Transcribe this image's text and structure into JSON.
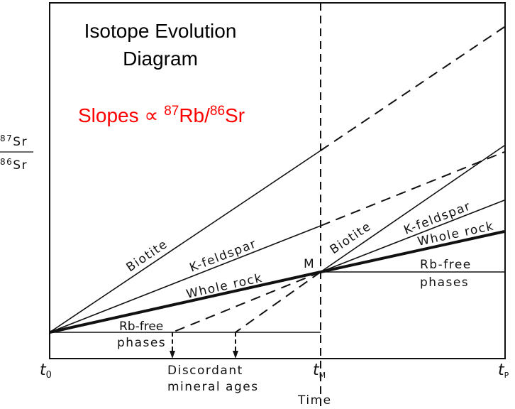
{
  "title_line1": "Isotope Evolution",
  "title_line2": "Diagram",
  "slopes": {
    "prefix": "Slopes ∝ ",
    "sup1": "87",
    "mid": "Rb/",
    "sup2": "86",
    "suffix": "Sr"
  },
  "y_axis": {
    "num_sup": "87",
    "num": "Sr",
    "den_sup": "86",
    "den": "Sr"
  },
  "x_axis": {
    "label": "Time",
    "t0": "t",
    "t0_sub": "0",
    "tM": "t",
    "tM_sub": "M",
    "tP": "t",
    "tP_sub": "P"
  },
  "point_label": "M",
  "lines_before": {
    "biotite": "Biotite",
    "kfeldspar": "K-feldspar",
    "whole_rock": "Whole rock",
    "rb_free_1": "Rb-free",
    "rb_free_2": "phases"
  },
  "lines_after": {
    "biotite": "Biotite",
    "kfeldspar": "K-feldspar",
    "whole_rock": "Whole rock",
    "rb_free_1": "Rb-free",
    "rb_free_2": "phases"
  },
  "discordant_1": "Discordant",
  "discordant_2": "mineral ages",
  "colors": {
    "annotation": "#ff0000",
    "lines": "#111111"
  }
}
